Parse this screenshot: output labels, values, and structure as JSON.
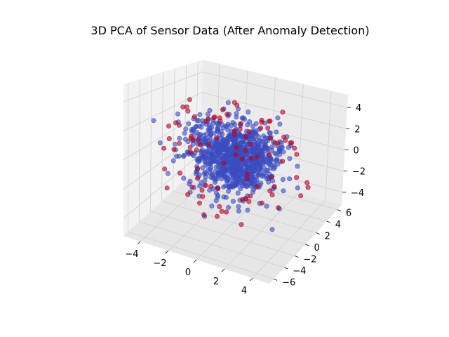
{
  "chart_data": {
    "type": "scatter",
    "projection": "3d",
    "title": "3D PCA of Sensor Data (After Anomaly Detection)",
    "xlabel": "",
    "ylabel": "",
    "zlabel": "",
    "x_ticks": [
      "−4",
      "−2",
      "0",
      "2",
      "4"
    ],
    "y_ticks": [
      "−6",
      "−4",
      "−2",
      "0",
      "2",
      "4",
      "6"
    ],
    "z_ticks": [
      "−4",
      "−2",
      "0",
      "2",
      "4"
    ],
    "xlim": [
      -5.2,
      5.2
    ],
    "ylim": [
      -6.8,
      6.8
    ],
    "zlim": [
      -5.2,
      5.2
    ],
    "grid": true,
    "series": [
      {
        "role": "normal",
        "color": "#3b4cc0",
        "approx_count": 950,
        "distribution": "dense roughly spherical cloud centered near (0,0,0), spread about 1.5 per axis",
        "points": [
          [
            0.2,
            -0.1,
            0.3
          ],
          [
            -1.1,
            0.8,
            0.5
          ],
          [
            1.3,
            0.4,
            -0.6
          ],
          [
            -0.5,
            -1.2,
            1.0
          ],
          [
            0.9,
            1.1,
            0.9
          ],
          [
            -1.6,
            0.2,
            -0.9
          ],
          [
            1.8,
            -0.9,
            0.2
          ],
          [
            -0.3,
            1.7,
            -1.2
          ],
          [
            0.6,
            -1.8,
            -0.4
          ],
          [
            -2.1,
            -0.6,
            0.7
          ],
          [
            2.3,
            0.7,
            -0.3
          ],
          [
            0.1,
            2.4,
            0.6
          ],
          [
            -0.8,
            -2.2,
            -1.1
          ],
          [
            1.5,
            1.6,
            1.6
          ],
          [
            -1.9,
            1.4,
            1.8
          ],
          [
            2.0,
            -1.7,
            -1.5
          ]
        ]
      },
      {
        "role": "anomaly",
        "color": "#b40426",
        "approx_count": 100,
        "distribution": "sparse points on the outskirts of the cloud",
        "points": [
          [
            -4.1,
            1.5,
            2.4
          ],
          [
            3.9,
            -2.6,
            3.1
          ],
          [
            -3.3,
            -3.8,
            -2.2
          ],
          [
            4.4,
            2.3,
            -1.8
          ],
          [
            -2.6,
            4.6,
            -3.0
          ],
          [
            2.9,
            -4.9,
            1.1
          ],
          [
            -4.6,
            -1.2,
            -0.4
          ],
          [
            1.3,
            5.1,
            2.8
          ],
          [
            -1.8,
            -5.4,
            3.2
          ],
          [
            3.4,
            3.6,
            -3.4
          ],
          [
            -3.9,
            2.9,
            -1.6
          ],
          [
            4.1,
            -0.4,
            2.6
          ]
        ]
      }
    ]
  }
}
